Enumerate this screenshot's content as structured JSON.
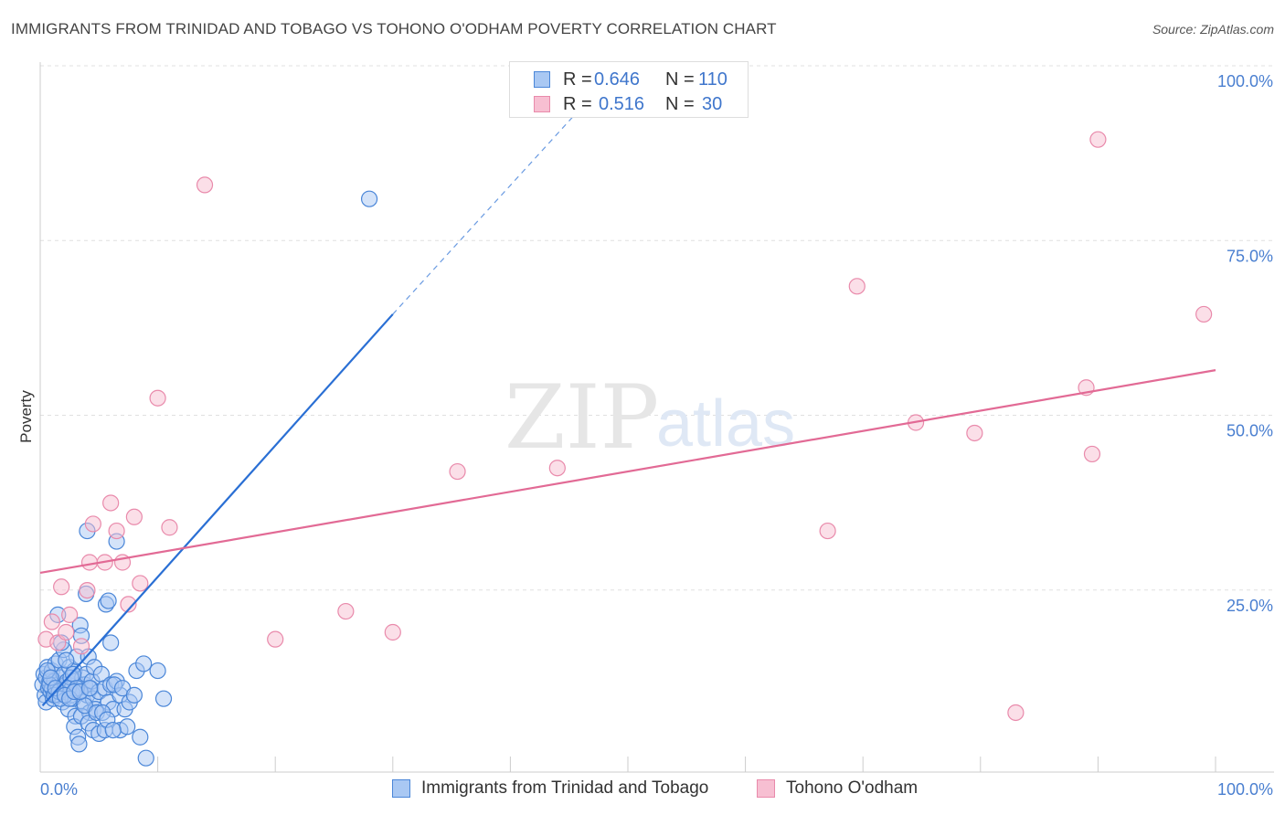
{
  "title": "IMMIGRANTS FROM TRINIDAD AND TOBAGO VS TOHONO O'ODHAM POVERTY CORRELATION CHART",
  "source": "Source: ZipAtlas.com",
  "watermark": {
    "zip": "ZIP",
    "atlas": "atlas"
  },
  "colors": {
    "blue_fill": "#a9c8f3",
    "blue_stroke": "#4a86d8",
    "blue_line": "#2a6fd4",
    "pink_fill": "#f7bfd2",
    "pink_stroke": "#e98aab",
    "pink_line": "#e26a95",
    "grid": "#e0e0e0",
    "tick_text": "#4a7fd0"
  },
  "legend": {
    "rows": [
      {
        "r_label": "R =",
        "r_value": "0.646",
        "n_label": "N =",
        "n_value": "110"
      },
      {
        "r_label": "R =",
        "r_value": "0.516",
        "n_label": "N =",
        "n_value": "30"
      }
    ]
  },
  "bottom_legend": {
    "series1": "Immigrants from Trinidad and Tobago",
    "series2": "Tohono O'odham"
  },
  "chart_data": {
    "type": "scatter",
    "title": "IMMIGRANTS FROM TRINIDAD AND TOBAGO VS TOHONO O'ODHAM POVERTY CORRELATION CHART",
    "xlabel": "",
    "ylabel": "Poverty",
    "xlim": [
      0,
      100
    ],
    "ylim": [
      0,
      100
    ],
    "x_tick_labels": [
      "0.0%",
      "100.0%"
    ],
    "y_ticks": [
      25,
      50,
      75,
      100
    ],
    "y_tick_labels": [
      "25.0%",
      "50.0%",
      "75.0%",
      "100.0%"
    ],
    "series": [
      {
        "name": "Immigrants from Trinidad and Tobago",
        "R": 0.646,
        "N": 110,
        "trend": {
          "x0": 0.2,
          "y0": 9.5,
          "x1": 30.0,
          "y1": 65.5,
          "dashed_to_x": 46.0,
          "dashed_to_y": 95.0
        },
        "points": [
          [
            0.2,
            12.5
          ],
          [
            0.3,
            14.0
          ],
          [
            0.4,
            11.0
          ],
          [
            0.5,
            13.5
          ],
          [
            0.5,
            10.0
          ],
          [
            0.6,
            15.0
          ],
          [
            0.7,
            12.0
          ],
          [
            0.8,
            13.0
          ],
          [
            0.9,
            11.5
          ],
          [
            1.0,
            14.5
          ],
          [
            1.0,
            12.0
          ],
          [
            1.1,
            10.5
          ],
          [
            1.2,
            13.0
          ],
          [
            1.3,
            15.5
          ],
          [
            1.4,
            11.0
          ],
          [
            1.5,
            12.5
          ],
          [
            1.6,
            16.0
          ],
          [
            1.7,
            13.5
          ],
          [
            1.8,
            12.0
          ],
          [
            1.9,
            10.0
          ],
          [
            2.0,
            14.0
          ],
          [
            2.0,
            17.5
          ],
          [
            2.1,
            11.5
          ],
          [
            2.2,
            12.5
          ],
          [
            2.3,
            13.0
          ],
          [
            2.4,
            9.0
          ],
          [
            2.5,
            15.0
          ],
          [
            2.6,
            11.0
          ],
          [
            2.7,
            12.0
          ],
          [
            2.8,
            10.5
          ],
          [
            2.9,
            14.5
          ],
          [
            3.0,
            13.0
          ],
          [
            3.0,
            8.0
          ],
          [
            3.1,
            16.5
          ],
          [
            3.2,
            12.0
          ],
          [
            3.3,
            11.5
          ],
          [
            3.4,
            21.0
          ],
          [
            3.5,
            19.5
          ],
          [
            3.6,
            13.5
          ],
          [
            3.7,
            10.0
          ],
          [
            3.8,
            12.5
          ],
          [
            3.9,
            14.0
          ],
          [
            4.0,
            11.0
          ],
          [
            4.1,
            16.5
          ],
          [
            4.2,
            8.5
          ],
          [
            4.3,
            12.0
          ],
          [
            4.4,
            13.0
          ],
          [
            4.5,
            10.5
          ],
          [
            4.6,
            15.0
          ],
          [
            4.7,
            9.0
          ],
          [
            1.5,
            22.5
          ],
          [
            1.8,
            18.5
          ],
          [
            2.2,
            16.0
          ],
          [
            2.6,
            13.5
          ],
          [
            2.9,
            6.5
          ],
          [
            3.2,
            5.0
          ],
          [
            3.3,
            4.0
          ],
          [
            3.5,
            8.0
          ],
          [
            3.8,
            9.5
          ],
          [
            4.1,
            7.0
          ],
          [
            4.5,
            6.0
          ],
          [
            4.8,
            8.5
          ],
          [
            5.0,
            11.5
          ],
          [
            5.2,
            14.0
          ],
          [
            5.5,
            12.0
          ],
          [
            5.8,
            10.0
          ],
          [
            6.0,
            12.5
          ],
          [
            6.2,
            9.0
          ],
          [
            6.5,
            13.0
          ],
          [
            6.8,
            11.0
          ],
          [
            3.9,
            25.5
          ],
          [
            4.0,
            34.5
          ],
          [
            5.6,
            24.0
          ],
          [
            5.8,
            24.5
          ],
          [
            6.0,
            18.5
          ],
          [
            6.3,
            12.5
          ],
          [
            6.5,
            33.0
          ],
          [
            6.8,
            6.0
          ],
          [
            7.0,
            12.0
          ],
          [
            7.2,
            9.0
          ],
          [
            7.4,
            6.5
          ],
          [
            7.6,
            10.0
          ],
          [
            8.0,
            11.0
          ],
          [
            8.2,
            14.5
          ],
          [
            8.5,
            5.0
          ],
          [
            8.8,
            15.5
          ],
          [
            9.0,
            2.0
          ],
          [
            10.0,
            14.5
          ],
          [
            10.5,
            10.5
          ],
          [
            5.0,
            5.5
          ],
          [
            5.3,
            8.5
          ],
          [
            5.5,
            6.0
          ],
          [
            5.7,
            7.5
          ],
          [
            6.2,
            6.0
          ],
          [
            0.8,
            12.5
          ],
          [
            1.2,
            11.0
          ],
          [
            1.6,
            11.5
          ],
          [
            2.4,
            12.0
          ],
          [
            2.8,
            14.0
          ],
          [
            3.1,
            12.0
          ],
          [
            0.6,
            14.5
          ],
          [
            0.9,
            13.5
          ],
          [
            1.3,
            12.0
          ],
          [
            1.7,
            10.5
          ],
          [
            2.1,
            11.0
          ],
          [
            2.5,
            10.5
          ],
          [
            2.9,
            11.5
          ],
          [
            3.4,
            11.5
          ],
          [
            4.2,
            12.0
          ],
          [
            28.0,
            82.0
          ]
        ]
      },
      {
        "name": "Tohono O'odham",
        "R": 0.516,
        "N": 30,
        "trend": {
          "x0": 0.0,
          "y0": 28.5,
          "x1": 100.0,
          "y1": 57.5
        },
        "points": [
          [
            0.5,
            19.0
          ],
          [
            1.0,
            21.5
          ],
          [
            1.5,
            18.5
          ],
          [
            1.8,
            26.5
          ],
          [
            2.2,
            20.0
          ],
          [
            2.5,
            22.5
          ],
          [
            3.5,
            18.0
          ],
          [
            4.0,
            26.0
          ],
          [
            4.2,
            30.0
          ],
          [
            4.5,
            35.5
          ],
          [
            5.5,
            30.0
          ],
          [
            6.0,
            38.5
          ],
          [
            6.5,
            34.5
          ],
          [
            7.0,
            30.0
          ],
          [
            7.5,
            24.0
          ],
          [
            8.0,
            36.5
          ],
          [
            8.5,
            27.0
          ],
          [
            10.0,
            53.5
          ],
          [
            11.0,
            35.0
          ],
          [
            14.0,
            84.0
          ],
          [
            20.0,
            19.0
          ],
          [
            26.0,
            23.0
          ],
          [
            30.0,
            20.0
          ],
          [
            35.5,
            43.0
          ],
          [
            44.0,
            43.5
          ],
          [
            67.0,
            34.5
          ],
          [
            69.5,
            69.5
          ],
          [
            74.5,
            50.0
          ],
          [
            79.5,
            48.5
          ],
          [
            83.0,
            8.5
          ],
          [
            89.0,
            55.0
          ],
          [
            89.5,
            45.5
          ],
          [
            90.0,
            90.5
          ],
          [
            99.0,
            65.5
          ]
        ]
      }
    ]
  }
}
